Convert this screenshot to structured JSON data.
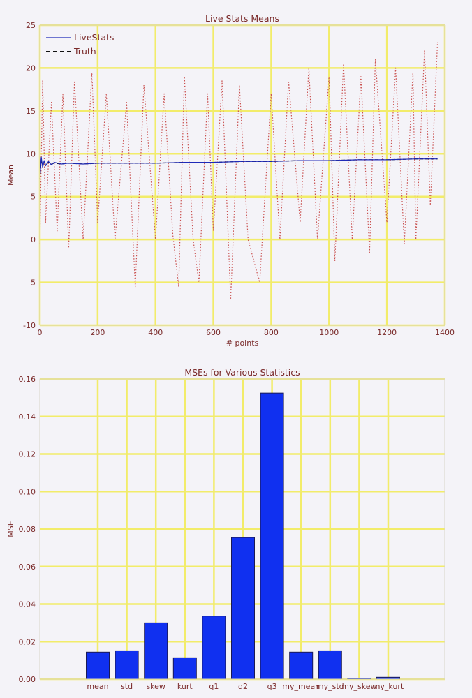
{
  "colors": {
    "background": "#f4f3f8",
    "grid": "#f2ec6a",
    "text": "#7a2a2a",
    "livestats_line": "#1f2ab8",
    "truth_line": "#111111",
    "noisy_samples": "#c9504f",
    "bar_fill": "#1030f0",
    "bar_edge": "#1a1a55"
  },
  "chart_data": [
    {
      "type": "line",
      "title": "Live Stats Means",
      "xlabel": "# points",
      "ylabel": "Mean",
      "xlim": [
        0,
        1400
      ],
      "ylim": [
        -10,
        25
      ],
      "xticks": [
        0,
        200,
        400,
        600,
        800,
        1000,
        1200,
        1400
      ],
      "yticks": [
        -10,
        -5,
        0,
        5,
        10,
        15,
        20,
        25
      ],
      "grid": true,
      "legend_position": "top-left",
      "series": [
        {
          "name": "LiveStats",
          "style": "solid",
          "x": [
            0,
            5,
            10,
            15,
            20,
            30,
            40,
            50,
            75,
            100,
            150,
            200,
            300,
            400,
            500,
            600,
            700,
            800,
            900,
            1000,
            1100,
            1200,
            1300,
            1375
          ],
          "y": [
            7.0,
            9.6,
            8.4,
            9.2,
            8.6,
            9.1,
            8.7,
            9.0,
            8.8,
            8.9,
            8.8,
            8.9,
            8.9,
            8.9,
            9.0,
            9.0,
            9.1,
            9.1,
            9.2,
            9.2,
            9.3,
            9.3,
            9.4,
            9.4
          ]
        },
        {
          "name": "Truth",
          "style": "dashed",
          "x": [
            0,
            5,
            10,
            15,
            20,
            30,
            40,
            50,
            75,
            100,
            150,
            200,
            300,
            400,
            500,
            600,
            700,
            800,
            900,
            1000,
            1100,
            1200,
            1300,
            1375
          ],
          "y": [
            7.0,
            9.4,
            8.5,
            9.1,
            8.7,
            9.0,
            8.8,
            8.9,
            8.8,
            8.9,
            8.8,
            8.9,
            8.9,
            8.9,
            9.0,
            9.0,
            9.1,
            9.1,
            9.2,
            9.2,
            9.3,
            9.3,
            9.4,
            9.4
          ]
        },
        {
          "style": "dotted",
          "x": [
            0,
            10,
            20,
            40,
            60,
            80,
            100,
            120,
            150,
            180,
            200,
            230,
            260,
            300,
            330,
            360,
            400,
            430,
            460,
            480,
            500,
            530,
            550,
            580,
            600,
            630,
            660,
            690,
            720,
            760,
            800,
            830,
            860,
            900,
            930,
            960,
            1000,
            1020,
            1050,
            1080,
            1110,
            1140,
            1160,
            1200,
            1230,
            1260,
            1290,
            1300,
            1330,
            1350,
            1375
          ],
          "y": [
            -0.5,
            18.5,
            2.0,
            16.0,
            1.0,
            17.0,
            -1.0,
            18.5,
            0.0,
            19.5,
            2.0,
            17.0,
            0.0,
            16.0,
            -5.5,
            18.0,
            0.0,
            17.0,
            0.5,
            -5.5,
            19.0,
            0.0,
            -5.0,
            17.0,
            1.0,
            18.5,
            -7.0,
            18.0,
            0.0,
            -5.0,
            17.0,
            0.0,
            18.5,
            2.0,
            20.0,
            0.0,
            19.0,
            -2.5,
            20.5,
            0.0,
            19.0,
            -1.5,
            21.0,
            2.0,
            20.0,
            -0.5,
            19.5,
            0.0,
            22.0,
            4.0,
            23.0
          ]
        }
      ]
    },
    {
      "type": "bar",
      "title": "MSEs for Various Statistics",
      "xlabel": "",
      "ylabel": "MSE",
      "ylim": [
        0.0,
        0.16
      ],
      "yticks": [
        0.0,
        0.02,
        0.04,
        0.06,
        0.08,
        0.1,
        0.12,
        0.14,
        0.16
      ],
      "ytick_labels": [
        "0.00",
        "0.02",
        "0.04",
        "0.06",
        "0.08",
        "0.10",
        "0.12",
        "0.14",
        "0.16"
      ],
      "grid": true,
      "categories": [
        "mean",
        "std",
        "skew",
        "kurt",
        "q1",
        "q2",
        "q3",
        "my_mean",
        "my_std",
        "my_skew",
        "my_kurt"
      ],
      "values": [
        0.0144,
        0.0151,
        0.03,
        0.0114,
        0.0336,
        0.0755,
        0.1525,
        0.0144,
        0.0151,
        0.0005,
        0.001
      ]
    }
  ]
}
